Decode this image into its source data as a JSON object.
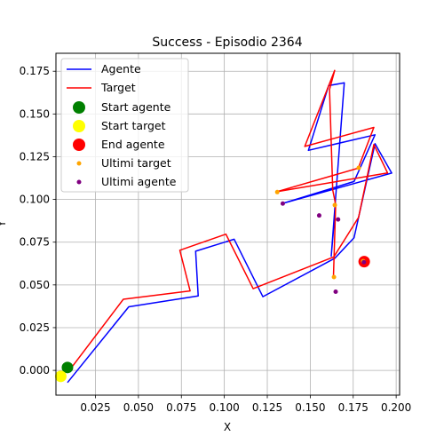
{
  "chart_data": {
    "type": "line",
    "title": "Success - Episodio 2364",
    "xlabel": "X",
    "ylabel": "Y",
    "xlim": [
      0.002,
      0.202
    ],
    "ylim": [
      -0.0145,
      0.1855
    ],
    "xticks": [
      0.025,
      0.05,
      0.075,
      0.1,
      0.125,
      0.15,
      0.175,
      0.2
    ],
    "xtick_labels": [
      "0.025",
      "0.050",
      "0.075",
      "0.100",
      "0.125",
      "0.150",
      "0.175",
      "0.200"
    ],
    "yticks": [
      0,
      0.025,
      0.05,
      0.075,
      0.1,
      0.125,
      0.15,
      0.175
    ],
    "ytick_labels": [
      "0.000",
      "0.025",
      "0.050",
      "0.075",
      "0.100",
      "0.125",
      "0.150",
      "0.175"
    ],
    "grid": true,
    "legend_position": "top-left",
    "series": [
      {
        "name": "Agente",
        "color": "#0000ff",
        "x": [
          0.0087,
          0.0444,
          0.0848,
          0.0833,
          0.1057,
          0.1224,
          0.1643,
          0.1755,
          0.1877,
          0.1974,
          0.1352,
          0.1755,
          0.1877,
          0.1489,
          0.1607,
          0.1698,
          0.1622,
          0.1648
        ],
        "y": [
          -0.0071,
          0.0372,
          0.0436,
          0.0697,
          0.0767,
          0.0431,
          0.0656,
          0.0776,
          0.1326,
          0.1154,
          0.098,
          0.1105,
          0.1378,
          0.1287,
          0.1666,
          0.1682,
          0.0668,
          0.097
        ]
      },
      {
        "name": "Target",
        "color": "#ff0000",
        "x": [
          0.0102,
          0.0412,
          0.0801,
          0.0741,
          0.1009,
          0.1168,
          0.1637,
          0.1781,
          0.187,
          0.195,
          0.1309,
          0.1779,
          0.187,
          0.1468,
          0.1642,
          0.1612,
          0.1631,
          0.1648,
          0.1635
        ],
        "y": [
          0.0005,
          0.0416,
          0.0465,
          0.0703,
          0.0797,
          0.0478,
          0.0664,
          0.0895,
          0.1321,
          0.1155,
          0.1046,
          0.1183,
          0.1421,
          0.131,
          0.1755,
          0.1643,
          0.1055,
          0.097,
          0.0547
        ]
      }
    ],
    "markers": [
      {
        "name": "Start agente",
        "color": "#008000",
        "x": 0.0087,
        "y": 0.0017,
        "size": "large"
      },
      {
        "name": "Start target",
        "color": "#ffff00",
        "x": 0.0048,
        "y": -0.0035,
        "size": "large"
      },
      {
        "name": "End agente",
        "color": "#ff0000",
        "x": 0.1814,
        "y": 0.0636,
        "size": "large"
      }
    ],
    "ultimi_target": {
      "name": "Ultimi target",
      "color": "#ffa500",
      "x": [
        0.1308,
        0.1638,
        0.1643,
        0.1782,
        0.1808
      ],
      "y": [
        0.1043,
        0.0546,
        0.0967,
        0.1185,
        0.0639
      ]
    },
    "ultimi_agente": {
      "name": "Ultimi agente",
      "color": "#800080",
      "x": [
        0.134,
        0.1552,
        0.1648,
        0.1662,
        0.1812
      ],
      "y": [
        0.0976,
        0.0906,
        0.046,
        0.0883,
        0.0633
      ]
    }
  }
}
